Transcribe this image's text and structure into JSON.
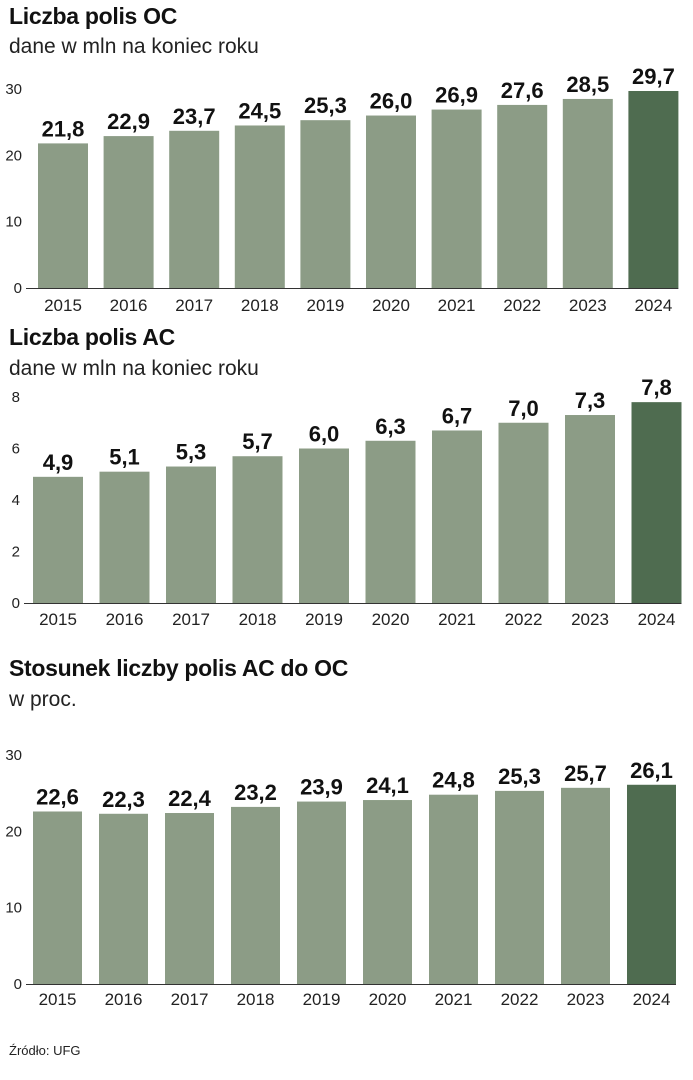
{
  "colors": {
    "bar": "#8c9c86",
    "highlight": "#4f6c50",
    "axis": "#333333"
  },
  "chart_data": [
    {
      "type": "bar",
      "title": "Liczba polis OC",
      "subtitle": "dane w mln na koniec roku",
      "categories": [
        "2015",
        "2016",
        "2017",
        "2018",
        "2019",
        "2020",
        "2021",
        "2022",
        "2023",
        "2024"
      ],
      "values": [
        21.8,
        22.9,
        23.7,
        24.5,
        25.3,
        26.0,
        26.9,
        27.6,
        28.5,
        29.7
      ],
      "value_labels": [
        "21,8",
        "22,9",
        "23,7",
        "24,5",
        "25,3",
        "26,0",
        "26,9",
        "27,6",
        "28,5",
        "29,7"
      ],
      "yticks": [
        0,
        10,
        20,
        30
      ],
      "ylim": [
        0,
        30
      ],
      "xlabel": "",
      "ylabel": "",
      "highlight_index": 9
    },
    {
      "type": "bar",
      "title": "Liczba polis AC",
      "subtitle": "dane w mln na koniec roku",
      "categories": [
        "2015",
        "2016",
        "2017",
        "2018",
        "2019",
        "2020",
        "2021",
        "2022",
        "2023",
        "2024"
      ],
      "values": [
        4.9,
        5.1,
        5.3,
        5.7,
        6.0,
        6.3,
        6.7,
        7.0,
        7.3,
        7.8
      ],
      "value_labels": [
        "4,9",
        "5,1",
        "5,3",
        "5,7",
        "6,0",
        "6,3",
        "6,7",
        "7,0",
        "7,3",
        "7,8"
      ],
      "yticks": [
        0,
        2,
        4,
        6,
        8
      ],
      "ylim": [
        0,
        8
      ],
      "xlabel": "",
      "ylabel": "",
      "highlight_index": 9
    },
    {
      "type": "bar",
      "title": "Stosunek liczby polis AC do OC",
      "subtitle": "w proc.",
      "categories": [
        "2015",
        "2016",
        "2017",
        "2018",
        "2019",
        "2020",
        "2021",
        "2022",
        "2023",
        "2024"
      ],
      "values": [
        22.6,
        22.3,
        22.4,
        23.2,
        23.9,
        24.1,
        24.8,
        25.3,
        25.7,
        26.1
      ],
      "value_labels": [
        "22,6",
        "22,3",
        "22,4",
        "23,2",
        "23,9",
        "24,1",
        "24,8",
        "25,3",
        "25,7",
        "26,1"
      ],
      "yticks": [
        0,
        10,
        20,
        30
      ],
      "ylim": [
        0,
        30
      ],
      "xlabel": "",
      "ylabel": "",
      "highlight_index": 9
    }
  ],
  "source": "Źródło: UFG"
}
